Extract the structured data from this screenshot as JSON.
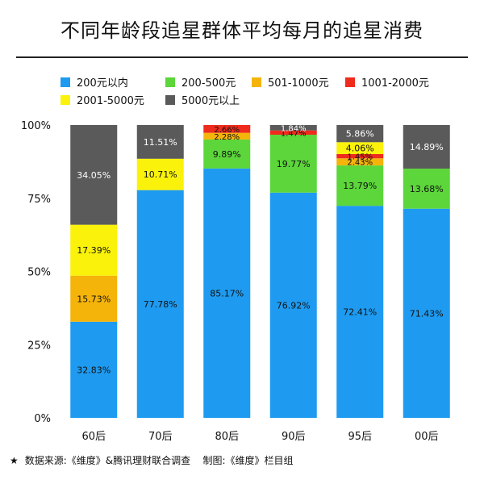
{
  "title": "不同年龄段追星群体平均每月的追星消费",
  "footer": {
    "star": "★",
    "source": "数据来源:《维度》&腾讯理财联合调查",
    "credit": "制图:《维度》栏目组"
  },
  "chart_data": {
    "type": "bar",
    "stacked": true,
    "categories": [
      "60后",
      "70后",
      "80后",
      "90后",
      "95后",
      "00后"
    ],
    "y_ticks": [
      "0%",
      "25%",
      "50%",
      "75%",
      "100%"
    ],
    "ylim": [
      0,
      100
    ],
    "legend_position": "top",
    "series": [
      {
        "name": "200元以内",
        "color": "#1e9bf0",
        "values": [
          32.83,
          77.78,
          85.17,
          76.92,
          72.41,
          71.43
        ],
        "labels": [
          "32.83%",
          "77.78%",
          "85.17%",
          "76.92%",
          "72.41%",
          "71.43%"
        ]
      },
      {
        "name": "200-500元",
        "color": "#5cd63a",
        "values": [
          0,
          0,
          9.89,
          19.77,
          13.79,
          13.68
        ],
        "labels": [
          "",
          "",
          "9.89%",
          "19.77%",
          "13.79%",
          "13.68%"
        ]
      },
      {
        "name": "501-1000元",
        "color": "#f5b40a",
        "values": [
          15.73,
          0,
          2.28,
          0,
          2.43,
          0
        ],
        "labels": [
          "15.73%",
          "",
          "2.28%",
          "",
          "2.43%",
          ""
        ]
      },
      {
        "name": "1001-2000元",
        "color": "#ee2b1c",
        "values": [
          0,
          0,
          2.66,
          1.47,
          1.45,
          0
        ],
        "labels": [
          "",
          "",
          "2.66%",
          "1.47%",
          "1.45%",
          ""
        ]
      },
      {
        "name": "2001-5000元",
        "color": "#faf20a",
        "values": [
          17.39,
          10.71,
          0,
          0,
          4.06,
          0
        ],
        "labels": [
          "17.39%",
          "10.71%",
          "",
          "",
          "4.06%",
          ""
        ]
      },
      {
        "name": "5000元以上",
        "color": "#5a5a5a",
        "values": [
          34.05,
          11.51,
          0,
          1.84,
          5.86,
          14.89
        ],
        "labels": [
          "34.05%",
          "11.51%",
          "",
          "1.84%",
          "5.86%",
          "14.89%"
        ]
      }
    ],
    "label_colors": [
      "#111111",
      "#111111",
      "#111111",
      "#111111",
      "#111111",
      "#ffffff"
    ]
  }
}
